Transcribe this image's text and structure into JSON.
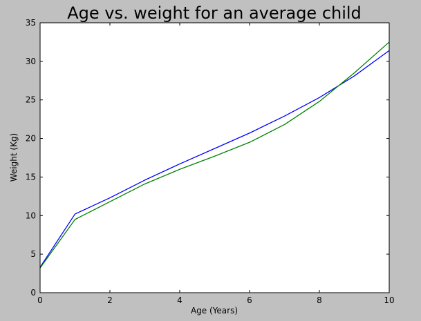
{
  "figure": {
    "background": "#c0c0c0",
    "plot_background": "#ffffff",
    "frame_color": "#000000",
    "text_color": "#000000"
  },
  "chart_data": {
    "type": "line",
    "title": "Age vs. weight for an average child",
    "xlabel": "Age (Years)",
    "ylabel": "Weight (Kg)",
    "xlim": [
      0,
      10
    ],
    "ylim": [
      0,
      35
    ],
    "xticks": [
      0,
      2,
      4,
      6,
      8,
      10
    ],
    "yticks": [
      0,
      5,
      10,
      15,
      20,
      25,
      30,
      35
    ],
    "grid": false,
    "legend": "none",
    "x": [
      0,
      1,
      2,
      3,
      4,
      5,
      6,
      7,
      8,
      9,
      10
    ],
    "series": [
      {
        "name": "weight-line-blue",
        "color": "#0000ff",
        "values": [
          3.3,
          10.2,
          12.3,
          14.6,
          16.7,
          18.7,
          20.7,
          22.9,
          25.3,
          28.1,
          31.4
        ]
      },
      {
        "name": "weight-line-green",
        "color": "#008000",
        "values": [
          3.2,
          9.5,
          11.8,
          14.1,
          16.0,
          17.7,
          19.5,
          21.8,
          24.8,
          28.5,
          32.5
        ]
      }
    ]
  }
}
